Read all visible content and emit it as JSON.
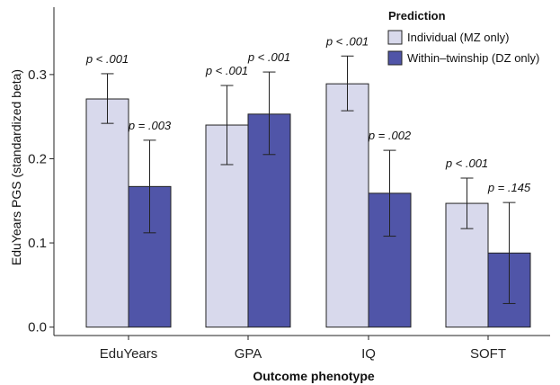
{
  "chart_data": {
    "type": "bar",
    "xlabel": "Outcome phenotype",
    "ylabel": "EduYears PGS (standardized beta)",
    "ylim": [
      -0.01,
      0.38
    ],
    "yticks": [
      "0.0",
      "0.1",
      "0.2",
      "0.3"
    ],
    "grid": false,
    "legend": {
      "title": "Prediction",
      "position": "top-right"
    },
    "categories": [
      "EduYears",
      "GPA",
      "IQ",
      "SOFT"
    ],
    "series": [
      {
        "name": "Individual (MZ only)",
        "color": "#d8d9ec",
        "values": [
          0.271,
          0.24,
          0.289,
          0.147
        ],
        "error_low": [
          0.242,
          0.193,
          0.257,
          0.117
        ],
        "error_high": [
          0.301,
          0.287,
          0.322,
          0.177
        ],
        "annotations": [
          "p < .001",
          "p < .001",
          "p < .001",
          "p < .001"
        ]
      },
      {
        "name": "Within–twinship (DZ only)",
        "color": "#5055a8",
        "values": [
          0.167,
          0.253,
          0.159,
          0.088
        ],
        "error_low": [
          0.112,
          0.205,
          0.108,
          0.028
        ],
        "error_high": [
          0.222,
          0.303,
          0.21,
          0.148
        ],
        "annotations": [
          "p = .003",
          "p < .001",
          "p = .002",
          "p = .145"
        ]
      }
    ]
  }
}
